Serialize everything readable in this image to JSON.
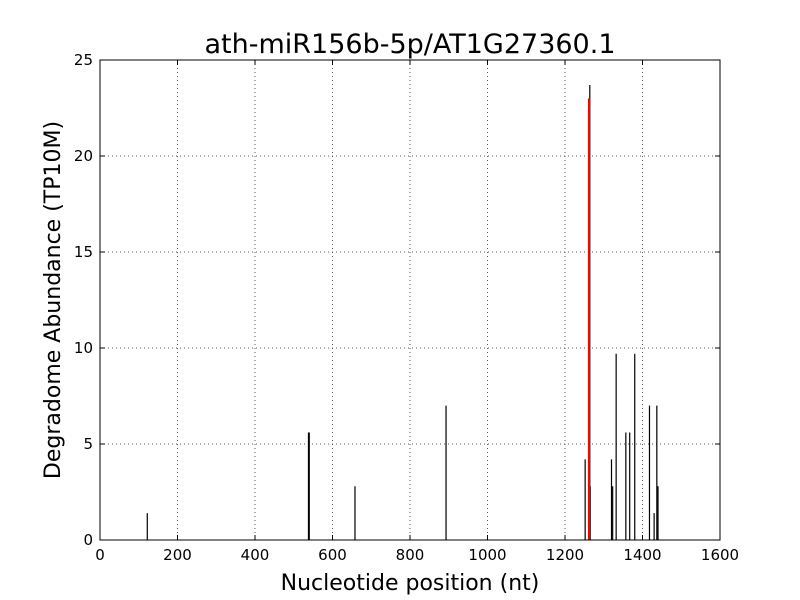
{
  "chart_data": {
    "type": "bar",
    "title": "ath-miR156b-5p/AT1G27360.1",
    "xlabel": "Nucleotide position (nt)",
    "ylabel": "Degradome Abundance (TP10M)",
    "xlim": [
      0,
      1600
    ],
    "ylim": [
      0,
      25
    ],
    "xticks": [
      0,
      200,
      400,
      600,
      800,
      1000,
      1200,
      1400,
      1600
    ],
    "yticks": [
      0,
      5,
      10,
      15,
      20,
      25
    ],
    "grid": true,
    "colors": {
      "signal": "#000000",
      "target": "#ff0000",
      "grid": "#555555"
    },
    "series": [
      {
        "color": "#000000",
        "x": [
          122,
          540,
          538,
          658,
          893,
          1252,
          1264,
          1265,
          1320,
          1323,
          1332,
          1357,
          1367,
          1380,
          1418,
          1430,
          1437,
          1440
        ],
        "values": [
          1.4,
          5.6,
          5.6,
          2.8,
          7.0,
          4.2,
          23.7,
          2.8,
          4.2,
          2.8,
          9.7,
          5.6,
          5.6,
          9.7,
          7.0,
          1.4,
          7.0,
          2.8
        ]
      },
      {
        "color": "#ff0000",
        "x": [
          1262
        ],
        "values": [
          23.0
        ]
      }
    ]
  }
}
